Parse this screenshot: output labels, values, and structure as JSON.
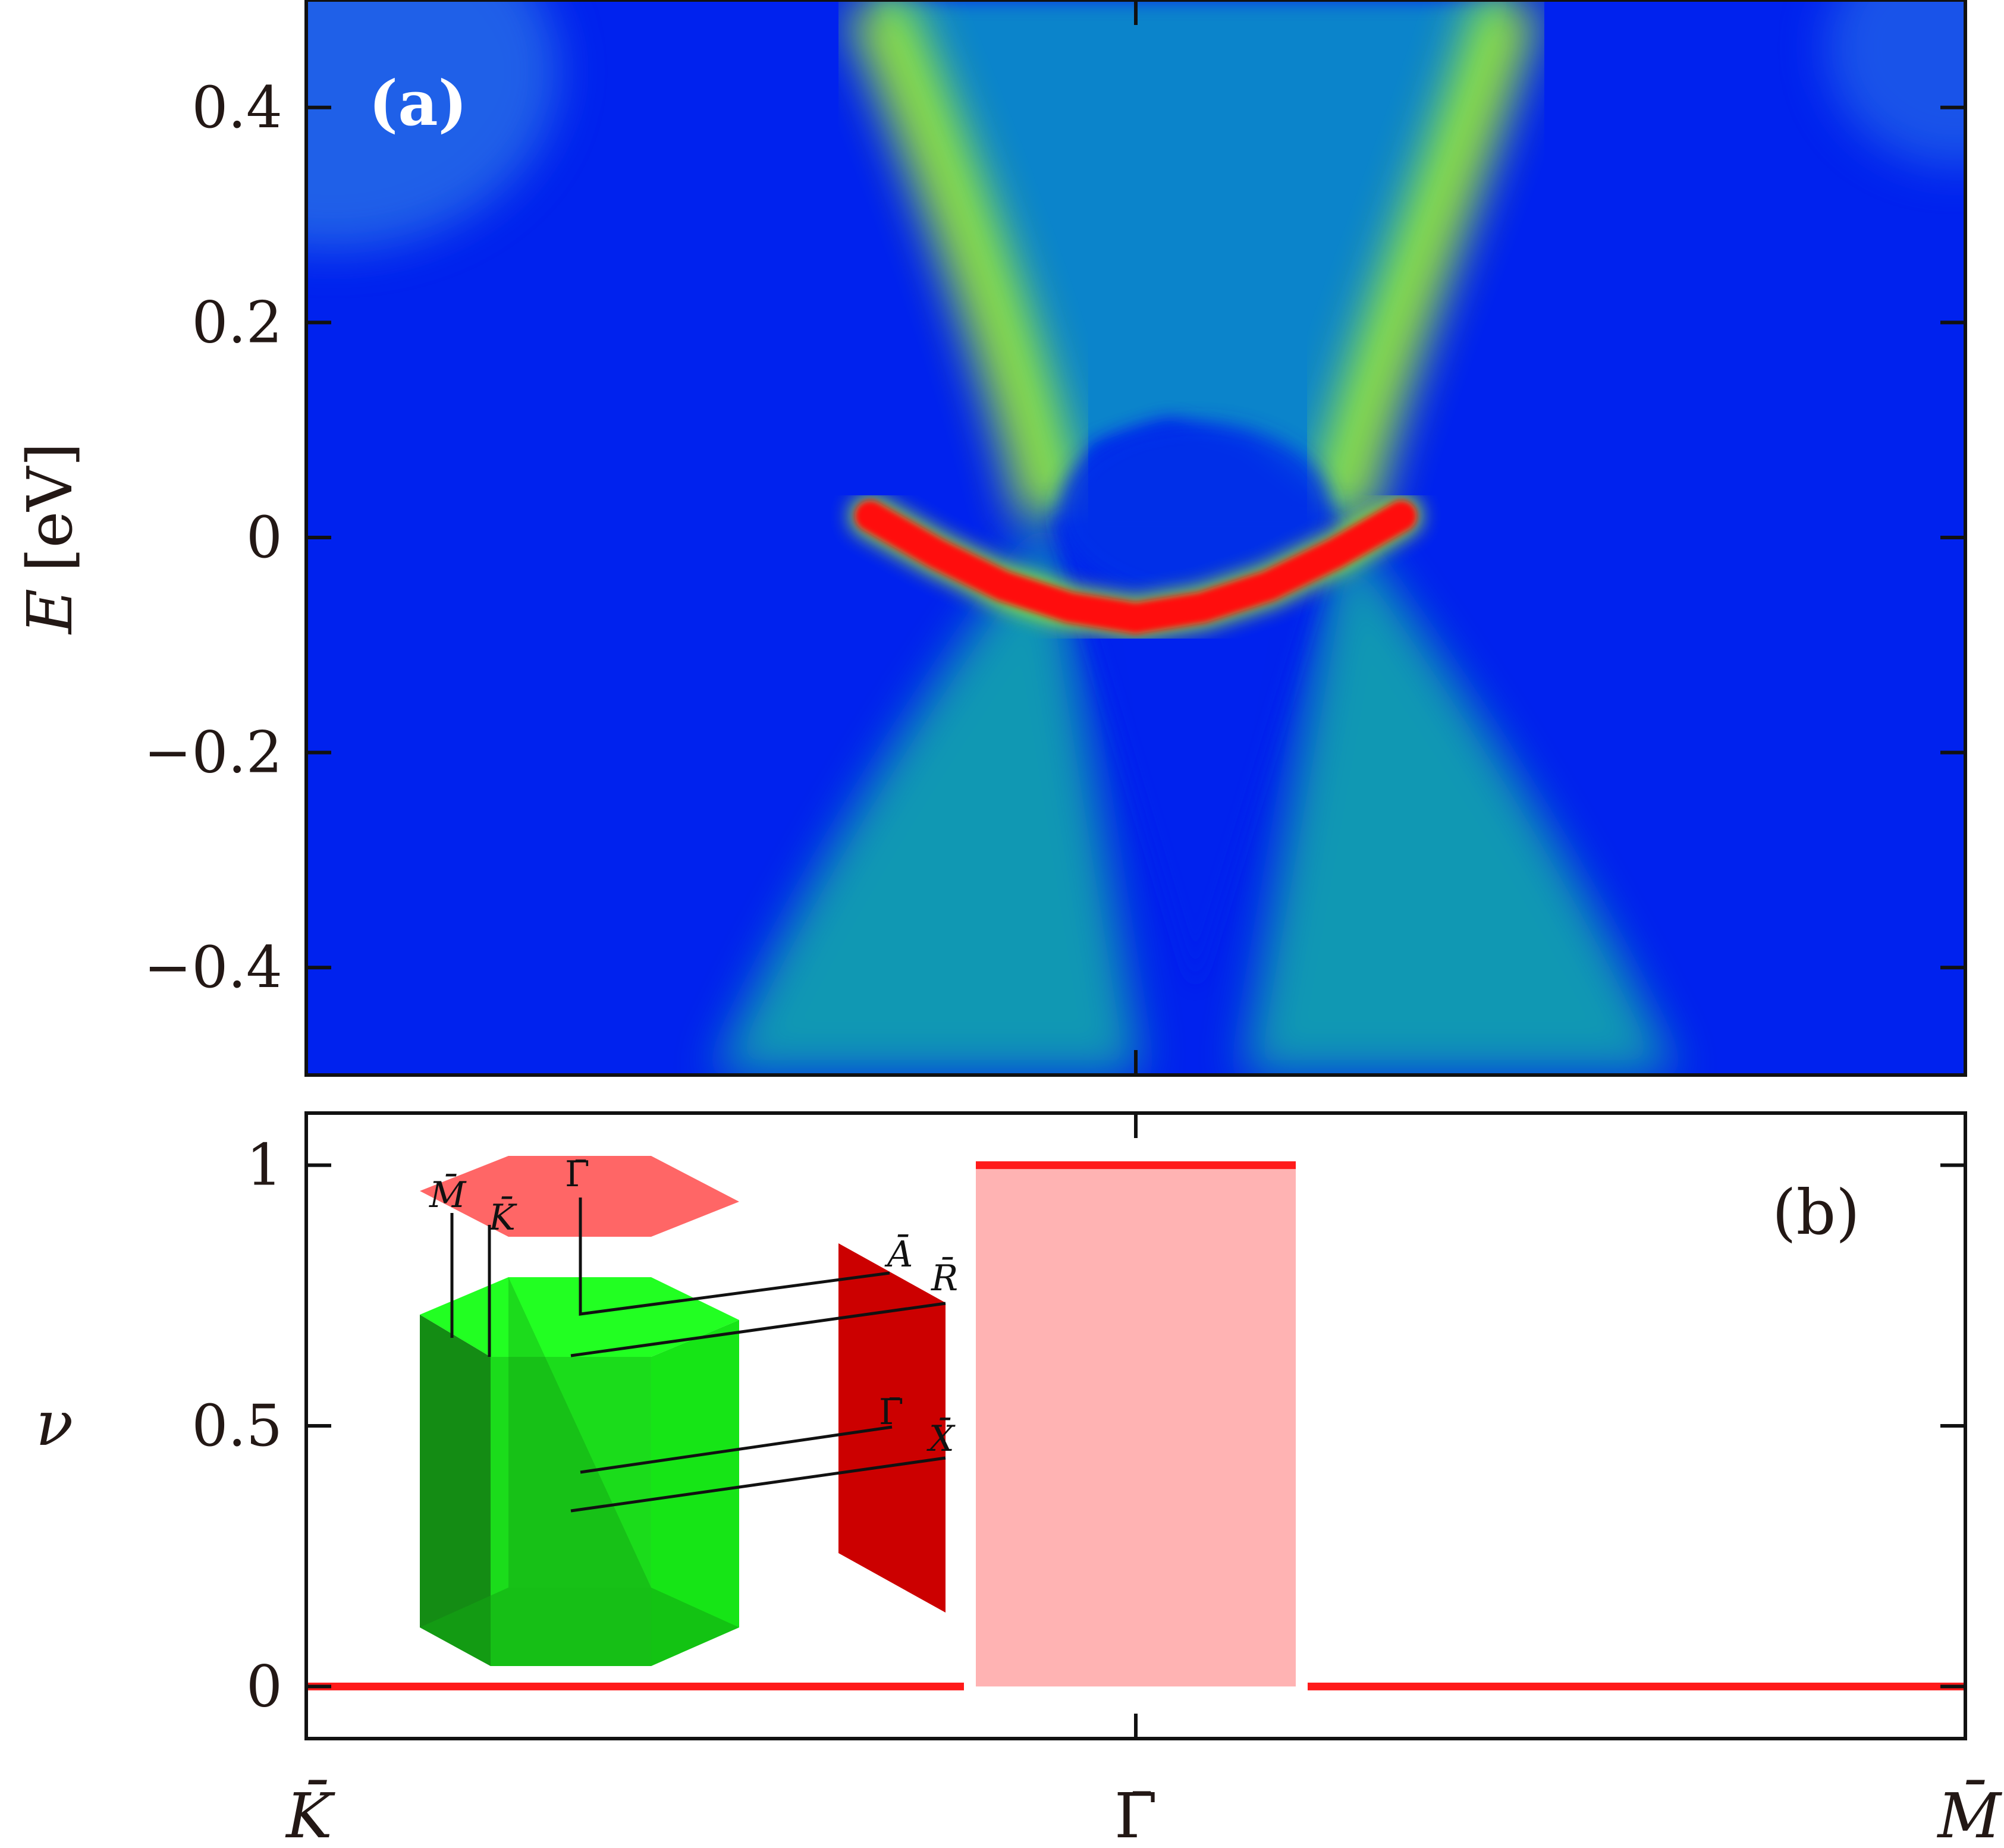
{
  "chart_data": [
    {
      "panel": "a",
      "type": "heatmap",
      "panel_label": "(a)",
      "ylabel_symbol": "E",
      "ylabel_unit": "[eV]",
      "ylim": [
        -0.5,
        0.5
      ],
      "yticks": [
        -0.4,
        -0.2,
        0,
        0.2,
        0.4
      ],
      "ytick_labels": [
        "−0.4",
        "−0.2",
        "0",
        "0.2",
        "0.4"
      ],
      "x_path": [
        "K̄",
        "Γ̄",
        "M̄"
      ],
      "description_colormap": [
        "#0022ee",
        "#0a88cc",
        "#18c8a0",
        "#a8f020",
        "#ff1010"
      ],
      "surface_state": {
        "k": [
          -0.16,
          -0.12,
          -0.08,
          -0.04,
          0,
          0.04,
          0.08,
          0.12,
          0.16
        ],
        "E": [
          0.02,
          -0.015,
          -0.045,
          -0.065,
          -0.075,
          -0.065,
          -0.045,
          -0.015,
          0.02
        ]
      }
    },
    {
      "panel": "b",
      "type": "line",
      "panel_label": "(b)",
      "ylabel": "ν",
      "ylim": [
        -0.1,
        1.1
      ],
      "yticks": [
        0,
        0.5,
        1
      ],
      "ytick_labels": [
        "0",
        "0.5",
        "1"
      ],
      "xtick_labels": [
        "K̄",
        "Γ̄",
        "M̄"
      ],
      "series": [
        {
          "x": [
            0,
            0.4,
            0.4,
            0.6,
            0.6,
            1.0
          ],
          "values": [
            0,
            0,
            1,
            1,
            0,
            0
          ]
        }
      ],
      "shaded_region": {
        "x": [
          0.4,
          0.6
        ],
        "y": [
          0,
          1
        ],
        "color": "#ffb3b3"
      },
      "inset_labels": {
        "top_face_M": "M̄",
        "top_face_K": "K̄",
        "top_face_Gamma": "Γ̄",
        "plane_A": "Ā",
        "plane_R": "R̄",
        "plane_Gamma": "Γ̄",
        "plane_X": "X̄"
      }
    }
  ],
  "colors": {
    "line": "#ff1a1a",
    "shade": "#ffb3b3",
    "prism_green": "#1ee61e",
    "prism_dark": "#128a12",
    "hexagon_top": "#ff6666",
    "plane_red": "#cc0000",
    "axis": "#111111"
  }
}
